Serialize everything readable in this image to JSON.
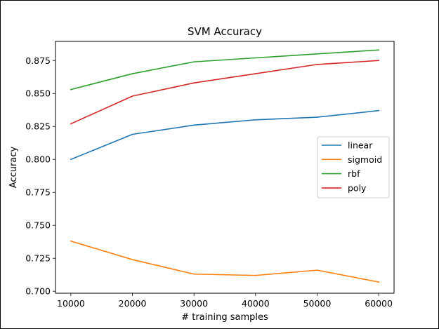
{
  "chart_data": {
    "type": "line",
    "title": "SVM Accuracy",
    "xlabel": "# training samples",
    "ylabel": "Accuracy",
    "x": [
      10000,
      20000,
      30000,
      40000,
      50000,
      60000
    ],
    "xticks": [
      10000,
      20000,
      30000,
      40000,
      50000,
      60000
    ],
    "xtick_labels": [
      "10000",
      "20000",
      "30000",
      "40000",
      "50000",
      "60000"
    ],
    "yticks": [
      0.7,
      0.725,
      0.75,
      0.775,
      0.8,
      0.825,
      0.85,
      0.875
    ],
    "ytick_labels": [
      "0.700",
      "0.725",
      "0.750",
      "0.775",
      "0.800",
      "0.825",
      "0.850",
      "0.875"
    ],
    "xlim": [
      7500,
      62500
    ],
    "ylim": [
      0.6985,
      0.8895
    ],
    "grid": false,
    "legend_position": "center-right",
    "series": [
      {
        "name": "linear",
        "color": "#1f77b4",
        "values": [
          0.8,
          0.819,
          0.826,
          0.83,
          0.832,
          0.837
        ]
      },
      {
        "name": "sigmoid",
        "color": "#ff7f0e",
        "values": [
          0.738,
          0.724,
          0.713,
          0.712,
          0.716,
          0.707
        ]
      },
      {
        "name": "rbf",
        "color": "#2ca02c",
        "values": [
          0.853,
          0.865,
          0.874,
          0.877,
          0.88,
          0.883
        ]
      },
      {
        "name": "poly",
        "color": "#d62728",
        "values": [
          0.827,
          0.848,
          0.858,
          0.865,
          0.872,
          0.875
        ]
      }
    ]
  }
}
